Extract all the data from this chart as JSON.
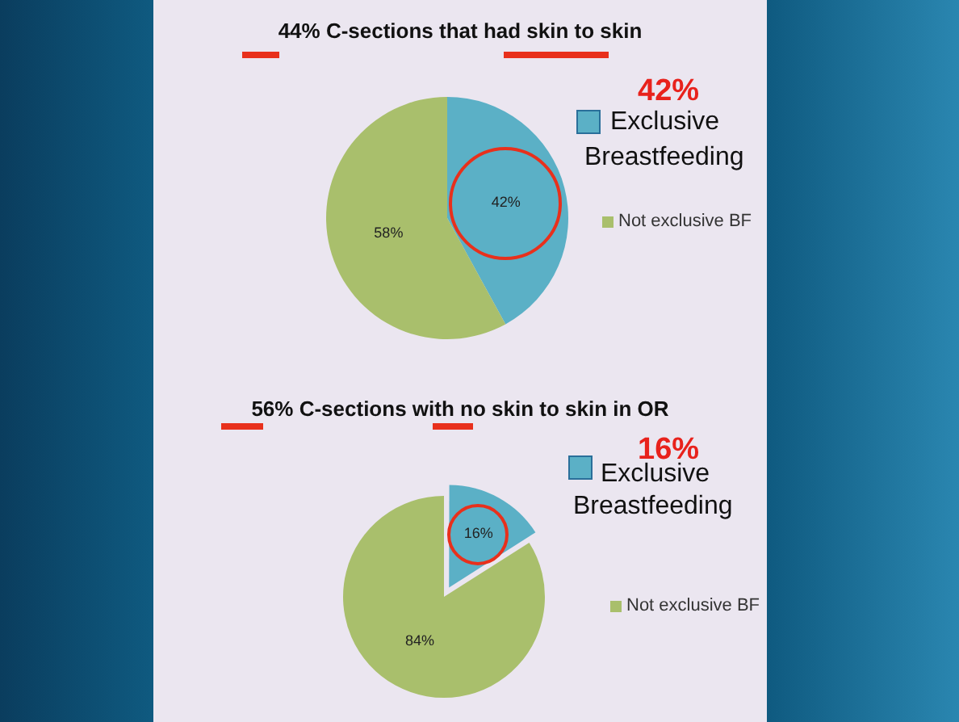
{
  "chart_data": [
    {
      "type": "pie",
      "title": "44% C-sections that had skin to skin",
      "categories": [
        "Exclusive Breastfeeding",
        "Not exclusive BF"
      ],
      "values": [
        42,
        58
      ],
      "colors": [
        "#5bb0c6",
        "#a9bf6c"
      ],
      "value_labels": [
        "42%",
        "58%"
      ],
      "legend": "right",
      "annotations": [
        "42%"
      ]
    },
    {
      "type": "pie",
      "title": "56% C-sections with no skin to skin in OR",
      "categories": [
        "Exclusive Breastfeeding",
        "Not exclusive BF"
      ],
      "values": [
        16,
        84
      ],
      "colors": [
        "#5bb0c6",
        "#a9bf6c"
      ],
      "value_labels": [
        "16%",
        "84%"
      ],
      "legend": "right",
      "annotations": [
        "16%"
      ]
    }
  ]
}
